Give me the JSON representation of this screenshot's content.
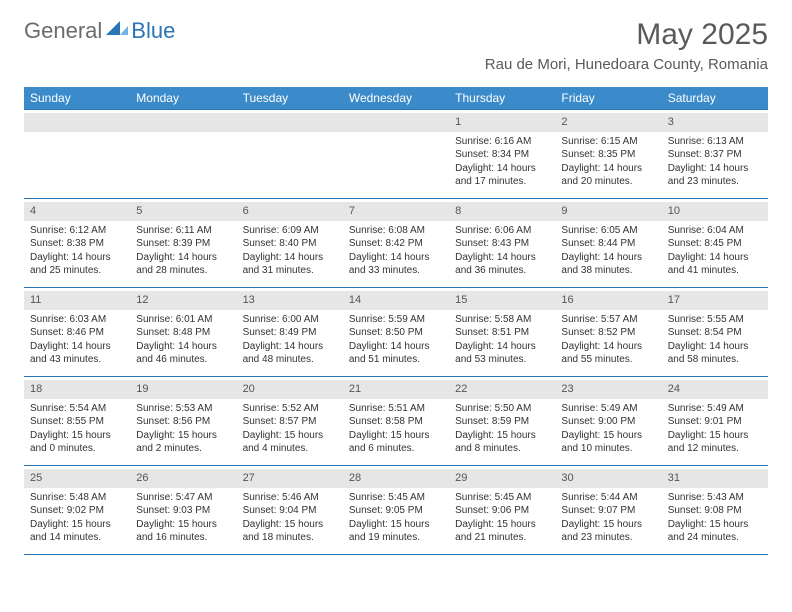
{
  "logo": {
    "text1": "General",
    "text2": "Blue"
  },
  "title": "May 2025",
  "location": "Rau de Mori, Hunedoara County, Romania",
  "colors": {
    "header_bg": "#3b8bca",
    "header_text": "#ffffff",
    "rule": "#2a74b8",
    "daynum_bg": "#e6e6e6",
    "body_text": "#333333",
    "logo_gray": "#6b6b6b",
    "logo_blue": "#2a74b8"
  },
  "day_names": [
    "Sunday",
    "Monday",
    "Tuesday",
    "Wednesday",
    "Thursday",
    "Friday",
    "Saturday"
  ],
  "weeks": [
    [
      {
        "n": "",
        "sr": "",
        "ss": "",
        "dl": ""
      },
      {
        "n": "",
        "sr": "",
        "ss": "",
        "dl": ""
      },
      {
        "n": "",
        "sr": "",
        "ss": "",
        "dl": ""
      },
      {
        "n": "",
        "sr": "",
        "ss": "",
        "dl": ""
      },
      {
        "n": "1",
        "sr": "Sunrise: 6:16 AM",
        "ss": "Sunset: 8:34 PM",
        "dl": "Daylight: 14 hours and 17 minutes."
      },
      {
        "n": "2",
        "sr": "Sunrise: 6:15 AM",
        "ss": "Sunset: 8:35 PM",
        "dl": "Daylight: 14 hours and 20 minutes."
      },
      {
        "n": "3",
        "sr": "Sunrise: 6:13 AM",
        "ss": "Sunset: 8:37 PM",
        "dl": "Daylight: 14 hours and 23 minutes."
      }
    ],
    [
      {
        "n": "4",
        "sr": "Sunrise: 6:12 AM",
        "ss": "Sunset: 8:38 PM",
        "dl": "Daylight: 14 hours and 25 minutes."
      },
      {
        "n": "5",
        "sr": "Sunrise: 6:11 AM",
        "ss": "Sunset: 8:39 PM",
        "dl": "Daylight: 14 hours and 28 minutes."
      },
      {
        "n": "6",
        "sr": "Sunrise: 6:09 AM",
        "ss": "Sunset: 8:40 PM",
        "dl": "Daylight: 14 hours and 31 minutes."
      },
      {
        "n": "7",
        "sr": "Sunrise: 6:08 AM",
        "ss": "Sunset: 8:42 PM",
        "dl": "Daylight: 14 hours and 33 minutes."
      },
      {
        "n": "8",
        "sr": "Sunrise: 6:06 AM",
        "ss": "Sunset: 8:43 PM",
        "dl": "Daylight: 14 hours and 36 minutes."
      },
      {
        "n": "9",
        "sr": "Sunrise: 6:05 AM",
        "ss": "Sunset: 8:44 PM",
        "dl": "Daylight: 14 hours and 38 minutes."
      },
      {
        "n": "10",
        "sr": "Sunrise: 6:04 AM",
        "ss": "Sunset: 8:45 PM",
        "dl": "Daylight: 14 hours and 41 minutes."
      }
    ],
    [
      {
        "n": "11",
        "sr": "Sunrise: 6:03 AM",
        "ss": "Sunset: 8:46 PM",
        "dl": "Daylight: 14 hours and 43 minutes."
      },
      {
        "n": "12",
        "sr": "Sunrise: 6:01 AM",
        "ss": "Sunset: 8:48 PM",
        "dl": "Daylight: 14 hours and 46 minutes."
      },
      {
        "n": "13",
        "sr": "Sunrise: 6:00 AM",
        "ss": "Sunset: 8:49 PM",
        "dl": "Daylight: 14 hours and 48 minutes."
      },
      {
        "n": "14",
        "sr": "Sunrise: 5:59 AM",
        "ss": "Sunset: 8:50 PM",
        "dl": "Daylight: 14 hours and 51 minutes."
      },
      {
        "n": "15",
        "sr": "Sunrise: 5:58 AM",
        "ss": "Sunset: 8:51 PM",
        "dl": "Daylight: 14 hours and 53 minutes."
      },
      {
        "n": "16",
        "sr": "Sunrise: 5:57 AM",
        "ss": "Sunset: 8:52 PM",
        "dl": "Daylight: 14 hours and 55 minutes."
      },
      {
        "n": "17",
        "sr": "Sunrise: 5:55 AM",
        "ss": "Sunset: 8:54 PM",
        "dl": "Daylight: 14 hours and 58 minutes."
      }
    ],
    [
      {
        "n": "18",
        "sr": "Sunrise: 5:54 AM",
        "ss": "Sunset: 8:55 PM",
        "dl": "Daylight: 15 hours and 0 minutes."
      },
      {
        "n": "19",
        "sr": "Sunrise: 5:53 AM",
        "ss": "Sunset: 8:56 PM",
        "dl": "Daylight: 15 hours and 2 minutes."
      },
      {
        "n": "20",
        "sr": "Sunrise: 5:52 AM",
        "ss": "Sunset: 8:57 PM",
        "dl": "Daylight: 15 hours and 4 minutes."
      },
      {
        "n": "21",
        "sr": "Sunrise: 5:51 AM",
        "ss": "Sunset: 8:58 PM",
        "dl": "Daylight: 15 hours and 6 minutes."
      },
      {
        "n": "22",
        "sr": "Sunrise: 5:50 AM",
        "ss": "Sunset: 8:59 PM",
        "dl": "Daylight: 15 hours and 8 minutes."
      },
      {
        "n": "23",
        "sr": "Sunrise: 5:49 AM",
        "ss": "Sunset: 9:00 PM",
        "dl": "Daylight: 15 hours and 10 minutes."
      },
      {
        "n": "24",
        "sr": "Sunrise: 5:49 AM",
        "ss": "Sunset: 9:01 PM",
        "dl": "Daylight: 15 hours and 12 minutes."
      }
    ],
    [
      {
        "n": "25",
        "sr": "Sunrise: 5:48 AM",
        "ss": "Sunset: 9:02 PM",
        "dl": "Daylight: 15 hours and 14 minutes."
      },
      {
        "n": "26",
        "sr": "Sunrise: 5:47 AM",
        "ss": "Sunset: 9:03 PM",
        "dl": "Daylight: 15 hours and 16 minutes."
      },
      {
        "n": "27",
        "sr": "Sunrise: 5:46 AM",
        "ss": "Sunset: 9:04 PM",
        "dl": "Daylight: 15 hours and 18 minutes."
      },
      {
        "n": "28",
        "sr": "Sunrise: 5:45 AM",
        "ss": "Sunset: 9:05 PM",
        "dl": "Daylight: 15 hours and 19 minutes."
      },
      {
        "n": "29",
        "sr": "Sunrise: 5:45 AM",
        "ss": "Sunset: 9:06 PM",
        "dl": "Daylight: 15 hours and 21 minutes."
      },
      {
        "n": "30",
        "sr": "Sunrise: 5:44 AM",
        "ss": "Sunset: 9:07 PM",
        "dl": "Daylight: 15 hours and 23 minutes."
      },
      {
        "n": "31",
        "sr": "Sunrise: 5:43 AM",
        "ss": "Sunset: 9:08 PM",
        "dl": "Daylight: 15 hours and 24 minutes."
      }
    ]
  ]
}
